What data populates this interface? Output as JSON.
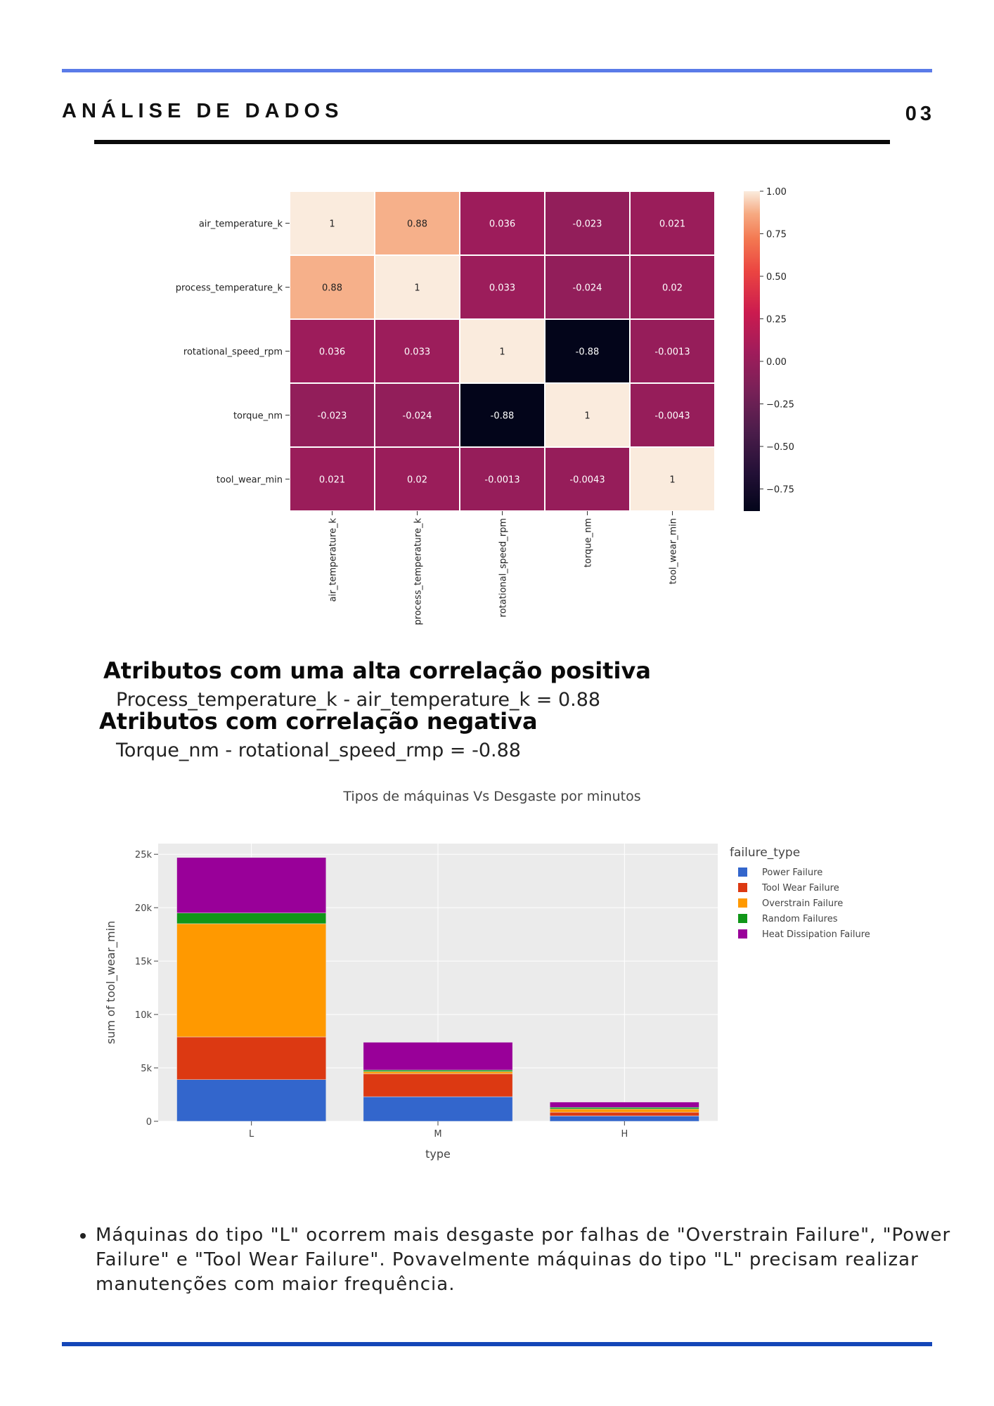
{
  "header": {
    "section_title": "ANÁLISE DE DADOS",
    "page_number": "03"
  },
  "insights": {
    "positive_heading": "Atributos com uma alta correlação positiva",
    "positive_text": "Process_temperature_k - air_temperature_k = 0.88",
    "negative_heading": "Atributos com correlação negativa",
    "negative_text": "Torque_nm - rotational_speed_rmp = -0.88"
  },
  "note": "Máquinas do tipo \"L\" ocorrem mais desgaste por falhas de \"Overstrain Failure\", \"Power Failure\" e \"Tool Wear Failure\". Povavelmente máquinas do tipo \"L\" precisam realizar manutenções com maior frequência.",
  "chart_data": [
    {
      "type": "heatmap",
      "title": "",
      "rows": [
        "air_temperature_k",
        "process_temperature_k",
        "rotational_speed_rpm",
        "torque_nm",
        "tool_wear_min"
      ],
      "columns": [
        "air_temperature_k",
        "process_temperature_k",
        "rotational_speed_rpm",
        "torque_nm",
        "tool_wear_min"
      ],
      "values": [
        [
          1,
          0.88,
          0.036,
          -0.023,
          0.021
        ],
        [
          0.88,
          1,
          0.033,
          -0.024,
          0.02
        ],
        [
          0.036,
          0.033,
          1,
          -0.88,
          -0.0013
        ],
        [
          -0.023,
          -0.024,
          -0.88,
          1,
          -0.0043
        ],
        [
          0.021,
          0.02,
          -0.0013,
          -0.0043,
          1
        ]
      ],
      "labels": [
        [
          "1",
          "0.88",
          "0.036",
          "-0.023",
          "0.021"
        ],
        [
          "0.88",
          "1",
          "0.033",
          "-0.024",
          "0.02"
        ],
        [
          "0.036",
          "0.033",
          "1",
          "-0.88",
          "-0.0013"
        ],
        [
          "-0.023",
          "-0.024",
          "-0.88",
          "1",
          "-0.0043"
        ],
        [
          "0.021",
          "0.02",
          "-0.0013",
          "-0.0043",
          "1"
        ]
      ],
      "colorbar": {
        "range": [
          -0.88,
          1
        ],
        "ticks": [
          1.0,
          0.75,
          0.5,
          0.25,
          0.0,
          -0.25,
          -0.5,
          -0.75
        ],
        "tick_labels": [
          "1.00",
          "0.75",
          "0.50",
          "0.25",
          "0.00",
          "−0.25",
          "−0.50",
          "−0.75"
        ],
        "colormap": "rocket"
      }
    },
    {
      "type": "bar",
      "stacked": true,
      "title": "Tipos de máquinas Vs Desgaste por minutos",
      "xlabel": "type",
      "ylabel": "sum of tool_wear_min",
      "categories": [
        "L",
        "M",
        "H"
      ],
      "ylim": [
        0,
        26000
      ],
      "y_ticks": [
        0,
        5000,
        10000,
        15000,
        20000,
        25000
      ],
      "y_tick_labels": [
        "0",
        "5k",
        "10k",
        "15k",
        "20k",
        "25k"
      ],
      "grid": true,
      "legend_title": "failure_type",
      "legend_position": "right",
      "series": [
        {
          "name": "Power Failure",
          "color": "#3366cc",
          "values": [
            3900,
            2300,
            500
          ]
        },
        {
          "name": "Tool Wear Failure",
          "color": "#dc3912",
          "values": [
            4000,
            2150,
            350
          ]
        },
        {
          "name": "Overstrain Failure",
          "color": "#ff9900",
          "values": [
            10600,
            200,
            300
          ]
        },
        {
          "name": "Random Failures",
          "color": "#109618",
          "values": [
            1000,
            150,
            150
          ]
        },
        {
          "name": "Heat Dissipation Failure",
          "color": "#990099",
          "values": [
            5200,
            2600,
            500
          ]
        }
      ]
    }
  ]
}
